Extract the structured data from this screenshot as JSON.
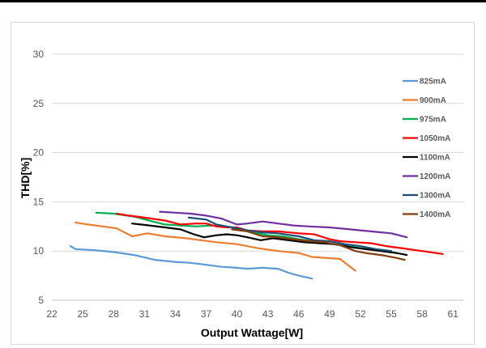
{
  "chart_data": {
    "type": "line",
    "title": "",
    "xlabel": "Output Wattage[W]",
    "ylabel": "THD[%]",
    "xlim": [
      22,
      62
    ],
    "ylim": [
      5,
      30
    ],
    "x_ticks": [
      22,
      25,
      28,
      31,
      34,
      37,
      40,
      43,
      46,
      49,
      52,
      55,
      58,
      61
    ],
    "y_ticks": [
      5,
      10,
      15,
      20,
      25,
      30
    ],
    "grid": "horizontal",
    "legend_position": "right",
    "series": [
      {
        "name": "825mA",
        "color": "#5b9bd5",
        "points": [
          [
            23.8,
            10.5
          ],
          [
            24.3,
            10.2
          ],
          [
            26,
            10.1
          ],
          [
            28,
            9.9
          ],
          [
            30,
            9.6
          ],
          [
            32,
            9.1
          ],
          [
            34,
            8.9
          ],
          [
            35.5,
            8.8
          ],
          [
            37,
            8.6
          ],
          [
            38.5,
            8.4
          ],
          [
            40,
            8.3
          ],
          [
            41,
            8.2
          ],
          [
            42.5,
            8.3
          ],
          [
            44,
            8.2
          ],
          [
            45,
            7.8
          ],
          [
            46,
            7.5
          ],
          [
            47.3,
            7.2
          ]
        ]
      },
      {
        "name": "900mA",
        "color": "#ed7d31",
        "points": [
          [
            24.3,
            12.9
          ],
          [
            25.5,
            12.7
          ],
          [
            27,
            12.5
          ],
          [
            28.3,
            12.3
          ],
          [
            29.8,
            11.5
          ],
          [
            31.3,
            11.8
          ],
          [
            33,
            11.5
          ],
          [
            35,
            11.3
          ],
          [
            36.5,
            11.1
          ],
          [
            38,
            10.9
          ],
          [
            40,
            10.7
          ],
          [
            42,
            10.3
          ],
          [
            44,
            10.0
          ],
          [
            46,
            9.8
          ],
          [
            47.3,
            9.4
          ],
          [
            50,
            9.2
          ],
          [
            51.5,
            8.0
          ]
        ]
      },
      {
        "name": "975mA",
        "color": "#00b050",
        "points": [
          [
            26.3,
            13.9
          ],
          [
            28,
            13.8
          ],
          [
            30,
            13.5
          ],
          [
            31.8,
            13.0
          ],
          [
            33,
            12.7
          ],
          [
            34.5,
            12.6
          ],
          [
            36,
            12.5
          ],
          [
            37.5,
            12.6
          ],
          [
            39,
            12.5
          ],
          [
            40,
            12.3
          ],
          [
            41.5,
            11.9
          ],
          [
            43,
            11.6
          ],
          [
            44.5,
            11.5
          ],
          [
            46,
            11.2
          ],
          [
            48,
            10.9
          ],
          [
            50,
            10.6
          ],
          [
            52,
            10.3
          ],
          [
            54,
            10.1
          ],
          [
            55.5,
            9.8
          ]
        ]
      },
      {
        "name": "1050mA",
        "color": "#ff0000",
        "points": [
          [
            28.3,
            13.8
          ],
          [
            29.5,
            13.6
          ],
          [
            31,
            13.4
          ],
          [
            33,
            13.1
          ],
          [
            34.5,
            12.7
          ],
          [
            36,
            12.8
          ],
          [
            37,
            12.8
          ],
          [
            38,
            12.5
          ],
          [
            39,
            12.4
          ],
          [
            40,
            12.4
          ],
          [
            41,
            12.1
          ],
          [
            42.5,
            12.0
          ],
          [
            44,
            12.0
          ],
          [
            46,
            11.8
          ],
          [
            47.5,
            11.7
          ],
          [
            49,
            11.2
          ],
          [
            50,
            11.0
          ],
          [
            51.5,
            10.9
          ],
          [
            53,
            10.8
          ],
          [
            54.5,
            10.5
          ],
          [
            56,
            10.3
          ],
          [
            58,
            10.0
          ],
          [
            60,
            9.7
          ]
        ]
      },
      {
        "name": "1100mA",
        "color": "#000000",
        "points": [
          [
            29.8,
            12.8
          ],
          [
            31.5,
            12.6
          ],
          [
            33,
            12.4
          ],
          [
            34.5,
            12.2
          ],
          [
            35.8,
            11.7
          ],
          [
            36.8,
            11.4
          ],
          [
            38,
            11.6
          ],
          [
            39,
            11.7
          ],
          [
            40,
            11.6
          ],
          [
            41,
            11.4
          ],
          [
            42.3,
            11.1
          ],
          [
            43.5,
            11.3
          ],
          [
            45,
            11.1
          ],
          [
            46.5,
            10.9
          ],
          [
            48,
            10.8
          ],
          [
            49.5,
            10.7
          ],
          [
            51,
            10.4
          ],
          [
            52.5,
            10.2
          ],
          [
            54,
            10.0
          ],
          [
            55.5,
            9.8
          ],
          [
            56.5,
            9.6
          ]
        ]
      },
      {
        "name": "1200mA",
        "color": "#7030a0",
        "points": [
          [
            32.5,
            14.0
          ],
          [
            34,
            13.9
          ],
          [
            35.5,
            13.8
          ],
          [
            37,
            13.6
          ],
          [
            38.5,
            13.3
          ],
          [
            40,
            12.7
          ],
          [
            41,
            12.8
          ],
          [
            42.5,
            13.0
          ],
          [
            44,
            12.8
          ],
          [
            45.5,
            12.6
          ],
          [
            47,
            12.5
          ],
          [
            49,
            12.4
          ],
          [
            51,
            12.2
          ],
          [
            53,
            12.0
          ],
          [
            55,
            11.8
          ],
          [
            56.5,
            11.4
          ]
        ]
      },
      {
        "name": "1300mA",
        "color": "#1f4e79",
        "points": [
          [
            35.3,
            13.4
          ],
          [
            37,
            13.2
          ],
          [
            38,
            12.7
          ],
          [
            39,
            12.5
          ],
          [
            40,
            12.3
          ],
          [
            41,
            12.1
          ],
          [
            42.5,
            11.9
          ],
          [
            44,
            11.8
          ],
          [
            46,
            11.5
          ],
          [
            47.5,
            11.1
          ],
          [
            49,
            11.0
          ],
          [
            50.5,
            10.7
          ],
          [
            52,
            10.5
          ],
          [
            53.5,
            10.2
          ],
          [
            55,
            10.0
          ]
        ]
      },
      {
        "name": "1400mA",
        "color": "#843c0c",
        "points": [
          [
            39.5,
            12.2
          ],
          [
            41,
            12.0
          ],
          [
            42.5,
            11.5
          ],
          [
            44,
            11.4
          ],
          [
            45.5,
            11.2
          ],
          [
            47,
            11.0
          ],
          [
            48.5,
            10.9
          ],
          [
            50,
            10.6
          ],
          [
            51.5,
            10.0
          ],
          [
            52.5,
            9.8
          ],
          [
            54,
            9.6
          ],
          [
            55.5,
            9.3
          ],
          [
            56.3,
            9.1
          ]
        ]
      }
    ]
  }
}
